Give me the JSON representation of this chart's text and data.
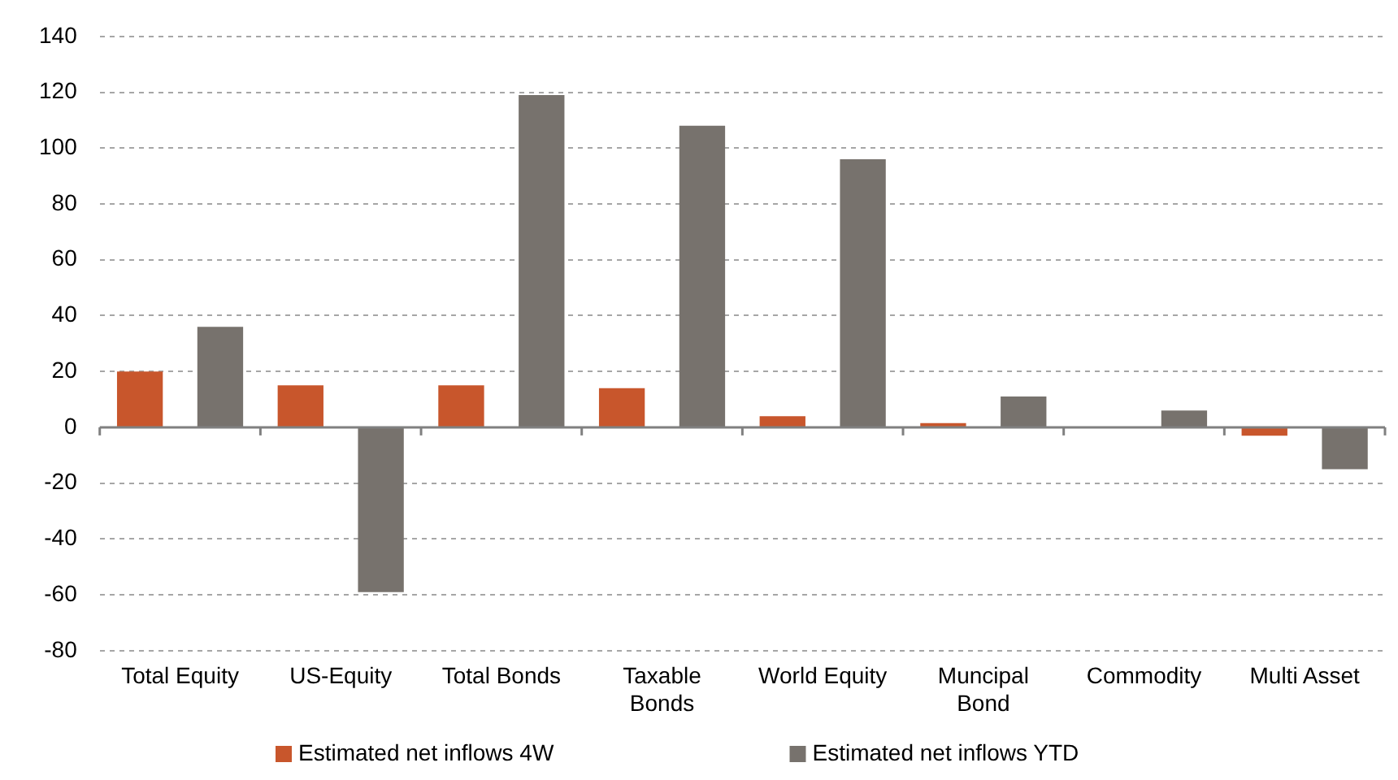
{
  "chart_data": {
    "type": "bar",
    "categories": [
      "Total Equity",
      "US-Equity",
      "Total Bonds",
      "Taxable Bonds",
      "World Equity",
      "Muncipal Bond",
      "Commodity",
      "Multi Asset"
    ],
    "series": [
      {
        "name": "Estimated net inflows 4W",
        "color": "#c8562c",
        "values": [
          20,
          15,
          15,
          14,
          4,
          1.5,
          0,
          -3
        ]
      },
      {
        "name": "Estimated net inflows YTD",
        "color": "#77726d",
        "values": [
          36,
          -59,
          119,
          108,
          96,
          11,
          6,
          -15
        ]
      }
    ],
    "ylim": [
      -80,
      140
    ],
    "yticks": [
      -80,
      -60,
      -40,
      -20,
      0,
      20,
      40,
      60,
      80,
      100,
      120,
      140
    ],
    "grid": "y",
    "legend": "bottom"
  }
}
